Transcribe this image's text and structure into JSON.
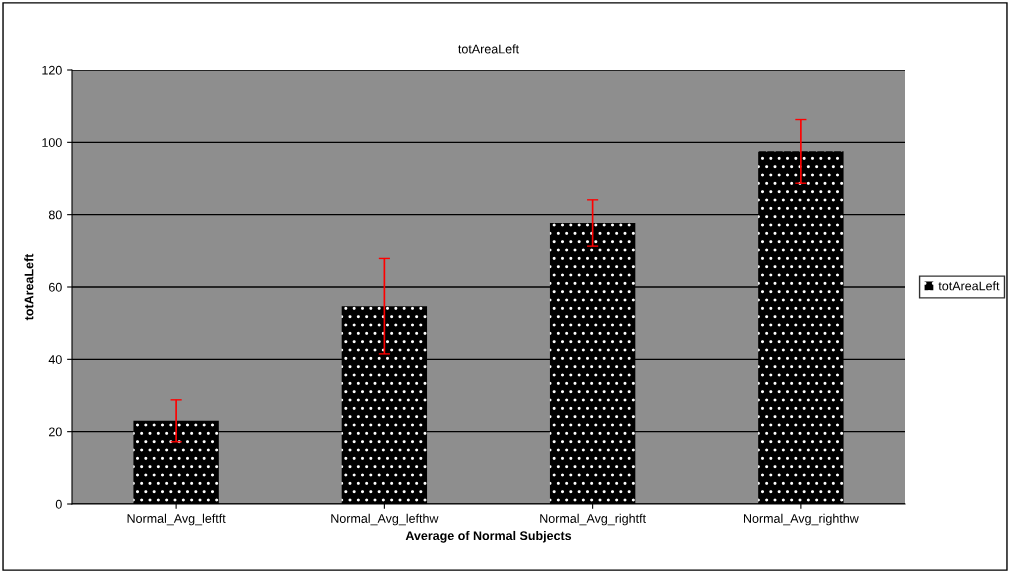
{
  "chart_data": {
    "type": "bar",
    "title": "totAreaLeft",
    "xlabel": "Average of Normal Subjects",
    "ylabel": "totAreaLeft",
    "categories": [
      "Normal_Avg_leftft",
      "Normal_Avg_lefthw",
      "Normal_Avg_rightft",
      "Normal_Avg_righthw"
    ],
    "series": [
      {
        "name": "totAreaLeft",
        "color": "#000000",
        "values": [
          23.0,
          54.7,
          77.7,
          97.5
        ],
        "errors": [
          5.8,
          13.2,
          6.4,
          8.8
        ]
      }
    ],
    "ylim": [
      0,
      120
    ],
    "yticks": [
      0,
      20,
      40,
      60,
      80,
      100,
      120
    ],
    "grid": "y",
    "legend": "right"
  }
}
